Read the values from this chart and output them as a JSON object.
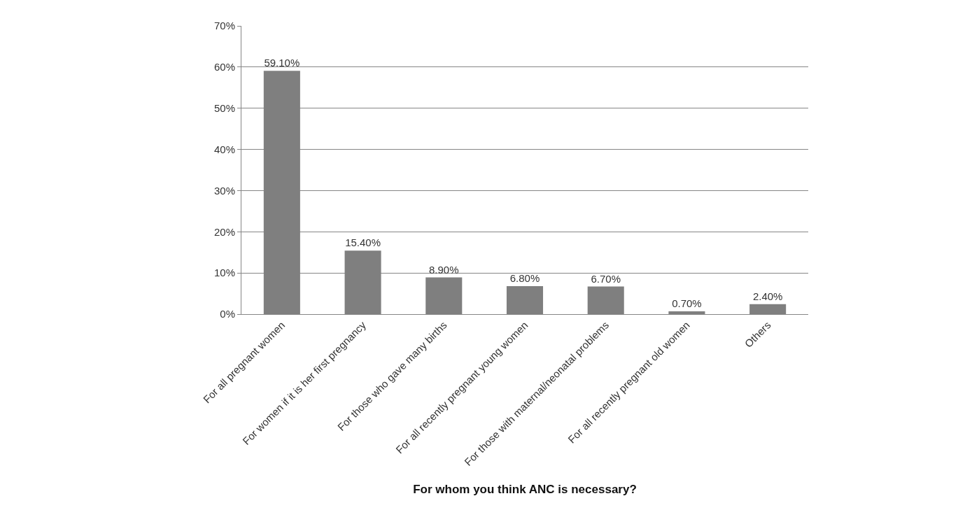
{
  "chart_data": {
    "type": "bar",
    "xlabel": "For whom you think ANC is necessary?",
    "categories": [
      "For all pregnant women",
      "For women if it is her first pregnancy",
      "For those who gave many births",
      "For all recently pregnant young women",
      "For those with maternal/neonatal problems",
      "For all recently pregnant old women",
      "Others"
    ],
    "values": [
      59.1,
      15.4,
      8.9,
      6.8,
      6.7,
      0.7,
      2.4
    ],
    "value_labels": [
      "59.10%",
      "15.40%",
      "8.90%",
      "6.80%",
      "6.70%",
      "0.70%",
      "2.40%"
    ],
    "color": "#7f7f7f",
    "ylim": [
      0,
      70
    ],
    "yticks": [
      {
        "value": 0,
        "label": "0%"
      },
      {
        "value": 10,
        "label": "10%"
      },
      {
        "value": 20,
        "label": "20%"
      },
      {
        "value": 30,
        "label": "30%"
      },
      {
        "value": 40,
        "label": "40%"
      },
      {
        "value": 50,
        "label": "50%"
      },
      {
        "value": 60,
        "label": "60%"
      },
      {
        "value": 70,
        "label": "70%"
      }
    ],
    "grid": "y"
  }
}
